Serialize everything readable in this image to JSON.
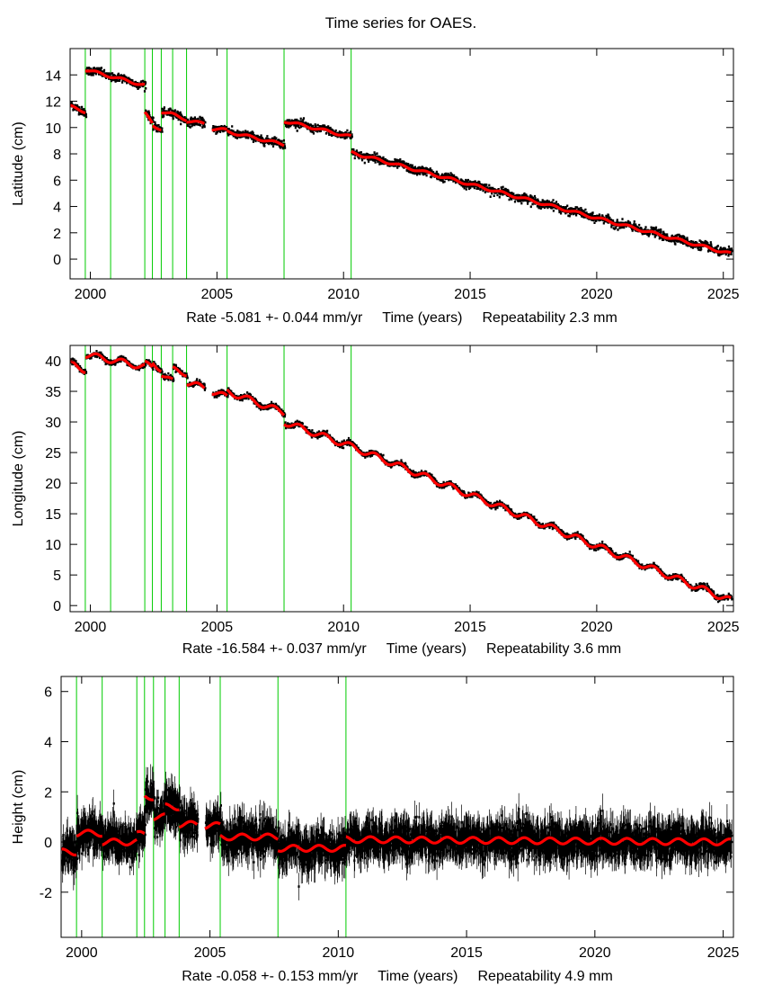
{
  "figure_title": "Time series for OAES.",
  "colors": {
    "data": "#000000",
    "model": "#ff0000",
    "offset_lines": "#00cc00",
    "frame": "#000000"
  },
  "chart_data": [
    {
      "type": "scatter",
      "ylabel": "Latitude (cm)",
      "xlabel": "Time (years)",
      "rate_text": "Rate -5.081 +- 0.044 mm/yr",
      "repeatability_text": "Repeatability 2.3 mm",
      "xlim": [
        1999.2,
        2025.4
      ],
      "ylim": [
        -1.5,
        16.0
      ],
      "x_ticks": [
        2000,
        2005,
        2010,
        2015,
        2020,
        2025
      ],
      "y_ticks": [
        0,
        2,
        4,
        6,
        8,
        10,
        12,
        14
      ],
      "offsets": [
        1999.8,
        2000.8,
        2002.15,
        2002.45,
        2002.8,
        2003.25,
        2003.8,
        2005.4,
        2007.65,
        2010.3
      ],
      "noise_cm": 0.25,
      "errorbars": false,
      "seasonal_amplitude": 0.1,
      "segments": [
        {
          "start": 1999.2,
          "end": 1999.8,
          "y_start": 11.6,
          "y_end": 11.2
        },
        {
          "start": 1999.8,
          "end": 2002.15,
          "y_start": 14.4,
          "y_end": 13.2
        },
        {
          "start": 2002.15,
          "end": 2002.45,
          "y_start": 11.1,
          "y_end": 10.3
        },
        {
          "start": 2002.45,
          "end": 2002.8,
          "y_start": 10.1,
          "y_end": 9.9
        },
        {
          "start": 2002.8,
          "end": 2003.25,
          "y_start": 11.2,
          "y_end": 11.0
        },
        {
          "start": 2003.25,
          "end": 2003.8,
          "y_start": 11.0,
          "y_end": 10.6
        },
        {
          "start": 2003.8,
          "end": 2004.5,
          "y_start": 10.5,
          "y_end": 10.3
        },
        {
          "start": 2004.8,
          "end": 2005.4,
          "y_start": 9.9,
          "y_end": 9.8
        },
        {
          "start": 2005.4,
          "end": 2007.65,
          "y_start": 9.7,
          "y_end": 8.7
        },
        {
          "start": 2007.65,
          "end": 2010.3,
          "y_start": 10.5,
          "y_end": 9.3
        },
        {
          "start": 2010.3,
          "end": 2025.3,
          "y_start": 8.1,
          "y_end": 0.4
        }
      ]
    },
    {
      "type": "scatter",
      "ylabel": "Longitude (cm)",
      "xlabel": "Time (years)",
      "rate_text": "Rate -16.584 +- 0.037 mm/yr",
      "repeatability_text": "Repeatability 3.6 mm",
      "xlim": [
        1999.2,
        2025.4
      ],
      "ylim": [
        -1.0,
        42.5
      ],
      "x_ticks": [
        2000,
        2005,
        2010,
        2015,
        2020,
        2025
      ],
      "y_ticks": [
        0,
        5,
        10,
        15,
        20,
        25,
        30,
        35,
        40
      ],
      "offsets": [
        1999.8,
        2000.8,
        2002.15,
        2002.45,
        2002.8,
        2003.25,
        2003.8,
        2005.4,
        2007.65,
        2010.3
      ],
      "noise_cm": 0.35,
      "errorbars": false,
      "seasonal_amplitude": 0.5,
      "segments": [
        {
          "start": 1999.2,
          "end": 1999.8,
          "y_start": 39.5,
          "y_end": 38.5
        },
        {
          "start": 1999.8,
          "end": 2002.15,
          "y_start": 41.0,
          "y_end": 39.0
        },
        {
          "start": 2002.15,
          "end": 2002.45,
          "y_start": 39.5,
          "y_end": 38.8
        },
        {
          "start": 2002.45,
          "end": 2002.8,
          "y_start": 39.5,
          "y_end": 38.7
        },
        {
          "start": 2002.8,
          "end": 2003.25,
          "y_start": 38.0,
          "y_end": 36.5
        },
        {
          "start": 2003.25,
          "end": 2003.8,
          "y_start": 38.5,
          "y_end": 38.0
        },
        {
          "start": 2003.8,
          "end": 2004.5,
          "y_start": 36.5,
          "y_end": 35.5
        },
        {
          "start": 2004.8,
          "end": 2005.4,
          "y_start": 35.0,
          "y_end": 34.0
        },
        {
          "start": 2005.4,
          "end": 2007.65,
          "y_start": 35.0,
          "y_end": 31.5
        },
        {
          "start": 2007.65,
          "end": 2010.3,
          "y_start": 30.0,
          "y_end": 26.0
        },
        {
          "start": 2010.3,
          "end": 2025.3,
          "y_start": 26.0,
          "y_end": 0.8
        }
      ]
    },
    {
      "type": "scatter",
      "ylabel": "Height (cm)",
      "xlabel": "Time (years)",
      "rate_text": "Rate -0.058 +- 0.153 mm/yr",
      "repeatability_text": "Repeatability 4.9 mm",
      "xlim": [
        1999.2,
        2025.4
      ],
      "ylim": [
        -3.8,
        6.6
      ],
      "x_ticks": [
        2000,
        2005,
        2010,
        2015,
        2020,
        2025
      ],
      "y_ticks": [
        -2,
        0,
        2,
        4,
        6
      ],
      "offsets": [
        1999.8,
        2000.8,
        2002.15,
        2002.45,
        2002.8,
        2003.25,
        2003.8,
        2005.4,
        2007.65,
        2010.3
      ],
      "noise_cm": 0.55,
      "errorbars": true,
      "seasonal_amplitude": 0.12,
      "segments": [
        {
          "start": 1999.2,
          "end": 1999.8,
          "y_start": -0.4,
          "y_end": -0.4
        },
        {
          "start": 1999.8,
          "end": 2000.8,
          "y_start": 0.35,
          "y_end": 0.35
        },
        {
          "start": 2000.8,
          "end": 2002.15,
          "y_start": 0.0,
          "y_end": 0.0
        },
        {
          "start": 2002.15,
          "end": 2002.45,
          "y_start": 0.3,
          "y_end": 0.3
        },
        {
          "start": 2002.45,
          "end": 2002.8,
          "y_start": 1.8,
          "y_end": 1.8
        },
        {
          "start": 2002.8,
          "end": 2003.25,
          "y_start": 1.0,
          "y_end": 1.0
        },
        {
          "start": 2003.25,
          "end": 2003.8,
          "y_start": 1.4,
          "y_end": 1.4
        },
        {
          "start": 2003.8,
          "end": 2004.5,
          "y_start": 0.7,
          "y_end": 0.7
        },
        {
          "start": 2004.8,
          "end": 2005.4,
          "y_start": 0.65,
          "y_end": 0.65
        },
        {
          "start": 2005.4,
          "end": 2007.65,
          "y_start": 0.2,
          "y_end": 0.2
        },
        {
          "start": 2007.65,
          "end": 2010.3,
          "y_start": -0.25,
          "y_end": -0.25
        },
        {
          "start": 2010.3,
          "end": 2025.3,
          "y_start": 0.1,
          "y_end": 0.0
        }
      ]
    }
  ]
}
